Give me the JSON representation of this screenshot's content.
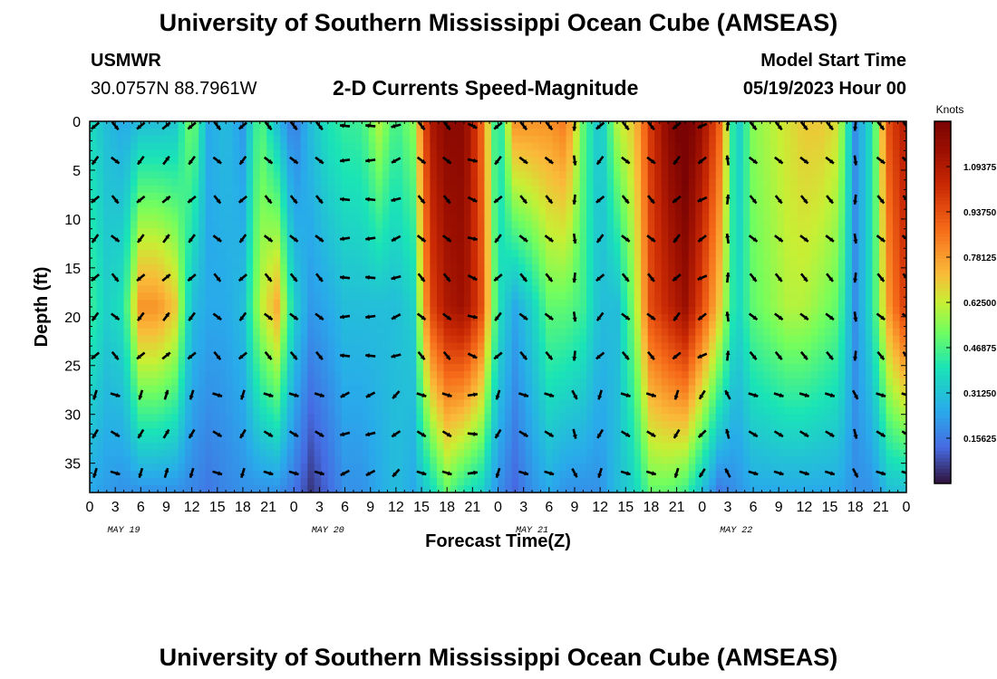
{
  "header": {
    "title": "University of Southern Mississippi Ocean Cube (AMSEAS)",
    "station": "USMWR",
    "coordinates": "30.0757N  88.7961W",
    "subtitle": "2-D Currents Speed-Magnitude",
    "model_start_label": "Model Start Time",
    "model_start_value": "05/19/2023 Hour 00"
  },
  "footer": {
    "title": "University of Southern Mississippi Ocean Cube (AMSEAS)"
  },
  "chart_data": {
    "type": "heatmap",
    "title": "2-D Currents Speed-Magnitude",
    "xlabel": "Forecast Time(Z)",
    "ylabel": "Depth (ft)",
    "x_tick_labels": [
      "0",
      "3",
      "6",
      "9",
      "12",
      "15",
      "18",
      "21",
      "0",
      "3",
      "6",
      "9",
      "12",
      "15",
      "18",
      "21",
      "0",
      "3",
      "6",
      "9",
      "12",
      "15",
      "18",
      "21",
      "0",
      "3",
      "6",
      "9",
      "12",
      "15",
      "18",
      "21",
      "0"
    ],
    "x_range_hours": [
      0,
      96
    ],
    "date_labels": [
      {
        "label": "MAY 19",
        "hour": 4
      },
      {
        "label": "MAY 20",
        "hour": 28
      },
      {
        "label": "MAY 21",
        "hour": 52
      },
      {
        "label": "MAY 22",
        "hour": 76
      }
    ],
    "y_ticks": [
      0,
      5,
      10,
      15,
      20,
      25,
      30,
      35
    ],
    "y_range_ft": [
      0,
      38
    ],
    "colorbar": {
      "unit": "Knots",
      "range": [
        0,
        1.25
      ],
      "tick_values": [
        1.09375,
        0.9375,
        0.78125,
        0.625,
        0.46875,
        0.3125,
        0.15625
      ],
      "tick_labels": [
        "1.09375",
        "0.93750",
        "0.78125",
        "0.62500",
        "0.46875",
        "0.31250",
        "0.15625"
      ]
    },
    "arrow_depths_ft": [
      0,
      4,
      8,
      12,
      16,
      20,
      24,
      28,
      32,
      36
    ],
    "arrow_interval_hours": 3,
    "surface_speed_knots": [
      0.38,
      0.3,
      0.25,
      0.3,
      0.3,
      0.32,
      0.55,
      0.25,
      0.3,
      0.22,
      0.5,
      0.3,
      0.15,
      0.3,
      0.4,
      0.44,
      0.45,
      0.6,
      0.45,
      0.55,
      1.1,
      1.2,
      1.2,
      0.9,
      0.35,
      0.8,
      0.8,
      0.8,
      0.85,
      0.5,
      0.3,
      0.6,
      0.7,
      1.0,
      1.2,
      1.3,
      1.15,
      0.9,
      0.3,
      0.55,
      0.6,
      0.65,
      0.7,
      0.7,
      0.65,
      0.2,
      0.4,
      0.95,
      1.1
    ],
    "mid_speed_knots": [
      0.45,
      0.35,
      0.4,
      0.8,
      0.8,
      0.7,
      0.3,
      0.25,
      0.25,
      0.3,
      0.6,
      0.75,
      0.35,
      0.22,
      0.25,
      0.3,
      0.3,
      0.3,
      0.3,
      0.35,
      0.95,
      1.1,
      1.15,
      0.95,
      0.4,
      0.25,
      0.35,
      0.5,
      0.5,
      0.45,
      0.3,
      0.3,
      0.55,
      0.95,
      1.05,
      1.15,
      0.95,
      0.7,
      0.35,
      0.5,
      0.55,
      0.6,
      0.6,
      0.55,
      0.5,
      0.2,
      0.4,
      0.8,
      1.0
    ],
    "bottom_speed_knots": [
      0.25,
      0.22,
      0.2,
      0.2,
      0.2,
      0.2,
      0.18,
      0.15,
      0.18,
      0.2,
      0.2,
      0.2,
      0.15,
      0.05,
      0.12,
      0.2,
      0.2,
      0.25,
      0.3,
      0.25,
      0.35,
      0.5,
      0.4,
      0.35,
      0.2,
      0.12,
      0.2,
      0.25,
      0.2,
      0.2,
      0.2,
      0.3,
      0.35,
      0.5,
      0.5,
      0.45,
      0.3,
      0.15,
      0.2,
      0.25,
      0.25,
      0.25,
      0.25,
      0.25,
      0.25,
      0.2,
      0.2,
      0.3,
      0.3
    ],
    "arrow_angles_deg": [
      -135,
      -45,
      -45,
      -135,
      -150,
      45,
      -135,
      -160,
      -45,
      -135,
      -135,
      -45,
      -45,
      -150,
      -45,
      180,
      -45,
      180,
      -160,
      -135,
      -45,
      -45,
      -45,
      -20,
      -135,
      -45,
      -45,
      -45,
      -45,
      -90,
      -135,
      -45,
      -45,
      -45,
      -45,
      -135,
      -150,
      -45,
      90,
      -45,
      -45,
      -45,
      -45,
      -45,
      -45,
      -90,
      -45,
      -45,
      -45
    ]
  }
}
